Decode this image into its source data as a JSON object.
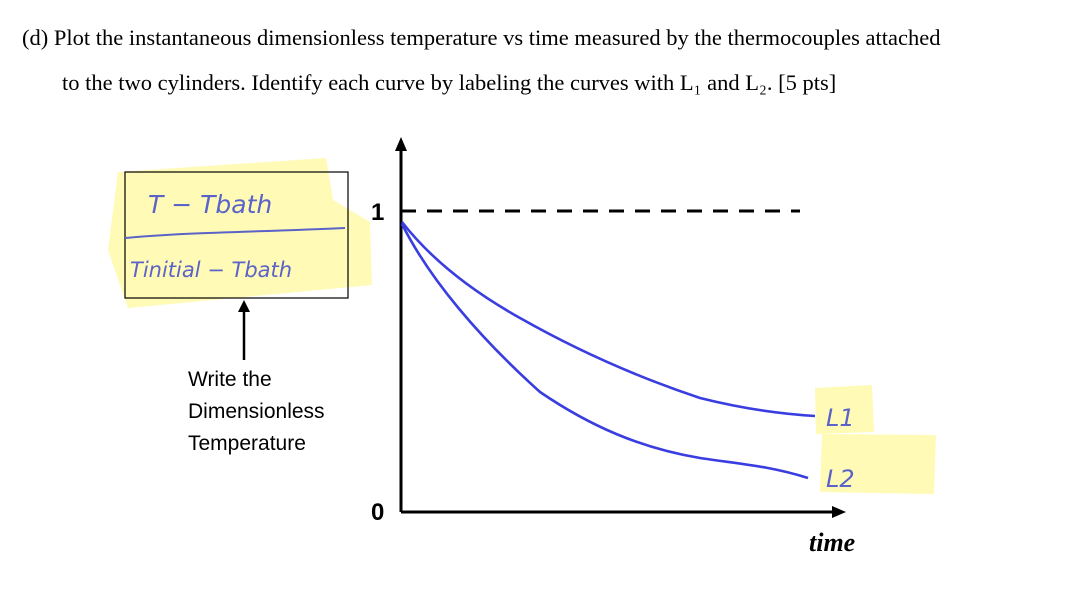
{
  "question": {
    "line1": "(d)  Plot the instantaneous dimensionless temperature vs time measured by the thermocouples attached",
    "line2": "to the two cylinders. Identify each curve by labeling the curves with L₁ and L₂. [5 pts]"
  },
  "answer_box": {
    "numerator": "T − Tbath",
    "denominator": "Tinitial − Tbath",
    "highlight_color": "#fff9a8",
    "ink_color": "#5b63c9"
  },
  "instruction": {
    "line1": "Write the",
    "line2": "Dimensionless",
    "line3": "Temperature"
  },
  "chart_data": {
    "type": "line",
    "xlabel": "time",
    "y_ticks": [
      "1",
      "0"
    ],
    "ylim": [
      0,
      1
    ],
    "reference_line": {
      "y": 1,
      "style": "dashed"
    },
    "series": [
      {
        "name": "L1",
        "color": "#3a3de0",
        "x": [
          0,
          0.1,
          0.25,
          0.45,
          0.7,
          1.0
        ],
        "values": [
          0.95,
          0.72,
          0.55,
          0.42,
          0.33,
          0.28
        ]
      },
      {
        "name": "L2",
        "color": "#3a3de0",
        "x": [
          0,
          0.1,
          0.25,
          0.45,
          0.7,
          1.0
        ],
        "values": [
          0.95,
          0.6,
          0.38,
          0.24,
          0.16,
          0.1
        ]
      }
    ],
    "labels_handwritten": [
      "L1",
      "L2"
    ]
  }
}
